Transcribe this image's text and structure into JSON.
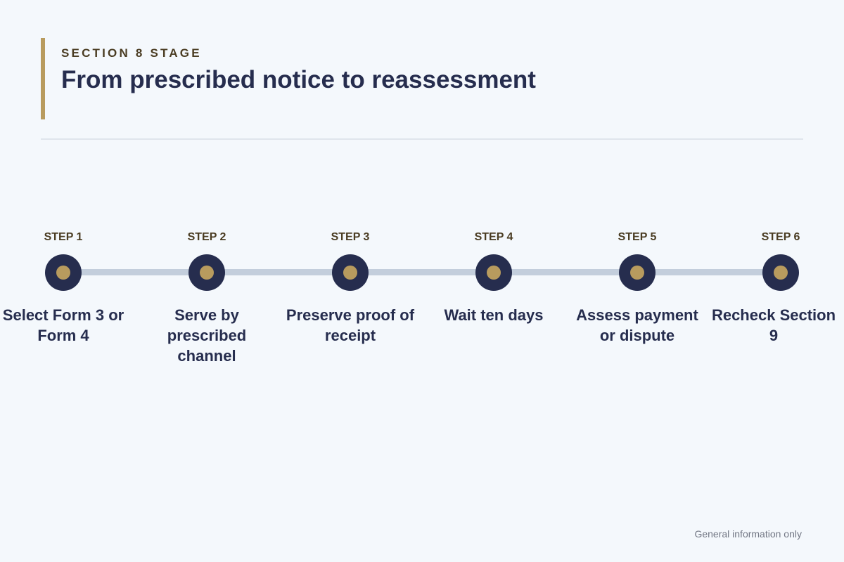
{
  "header": {
    "eyebrow": "SECTION 8 STAGE",
    "title": "From prescribed notice to reassessment"
  },
  "steps": [
    {
      "label": "STEP 1",
      "text": "Select Form 3 or Form 4"
    },
    {
      "label": "STEP 2",
      "text": "Serve by prescribed channel"
    },
    {
      "label": "STEP 3",
      "text": "Preserve proof of receipt"
    },
    {
      "label": "STEP 4",
      "text": "Wait ten days"
    },
    {
      "label": "STEP 5",
      "text": "Assess payment or dispute"
    },
    {
      "label": "STEP 6",
      "text": "Recheck Section 9"
    }
  ],
  "footer": {
    "note": "General information only"
  },
  "colors": {
    "background": "#f4f8fc",
    "navy": "#262d4e",
    "gold": "#b89b5e",
    "track": "#c3cedc",
    "eyebrow": "#4a3c22"
  }
}
